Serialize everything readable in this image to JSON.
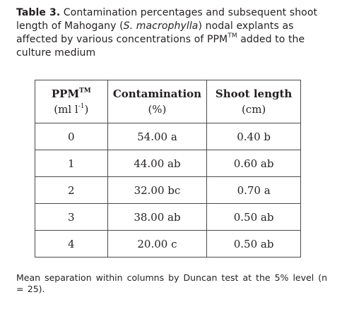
{
  "caption": {
    "label": "Table 3.",
    "text_1": " Contamination percentages and subsequent shoot length of Mahogany (",
    "species": "S. macrophylla",
    "text_2": ") nodal explants as affected by various concentrations of PPM",
    "tm": "TM",
    "text_3": " added to the culture medium"
  },
  "table": {
    "headers": {
      "ppm_name": "PPM",
      "ppm_tm": "TM",
      "ppm_unit": "(ml l",
      "ppm_unit_exp": "-1",
      "ppm_unit_close": ")",
      "contamination_name": "Contamination",
      "contamination_unit": "(%)",
      "shoot_name": "Shoot length",
      "shoot_unit": "(cm)"
    },
    "rows": [
      {
        "ppm": "0",
        "contamination": "54.00 a",
        "shoot_length": "0.40 b"
      },
      {
        "ppm": "1",
        "contamination": "44.00 ab",
        "shoot_length": "0.60 ab"
      },
      {
        "ppm": "2",
        "contamination": "32.00 bc",
        "shoot_length": "0.70 a"
      },
      {
        "ppm": "3",
        "contamination": "38.00 ab",
        "shoot_length": "0.50 ab"
      },
      {
        "ppm": "4",
        "contamination": "20.00 c",
        "shoot_length": "0.50 ab"
      }
    ]
  },
  "footnote": "Mean separation within columns by Duncan test at the 5% level (n = 25)."
}
